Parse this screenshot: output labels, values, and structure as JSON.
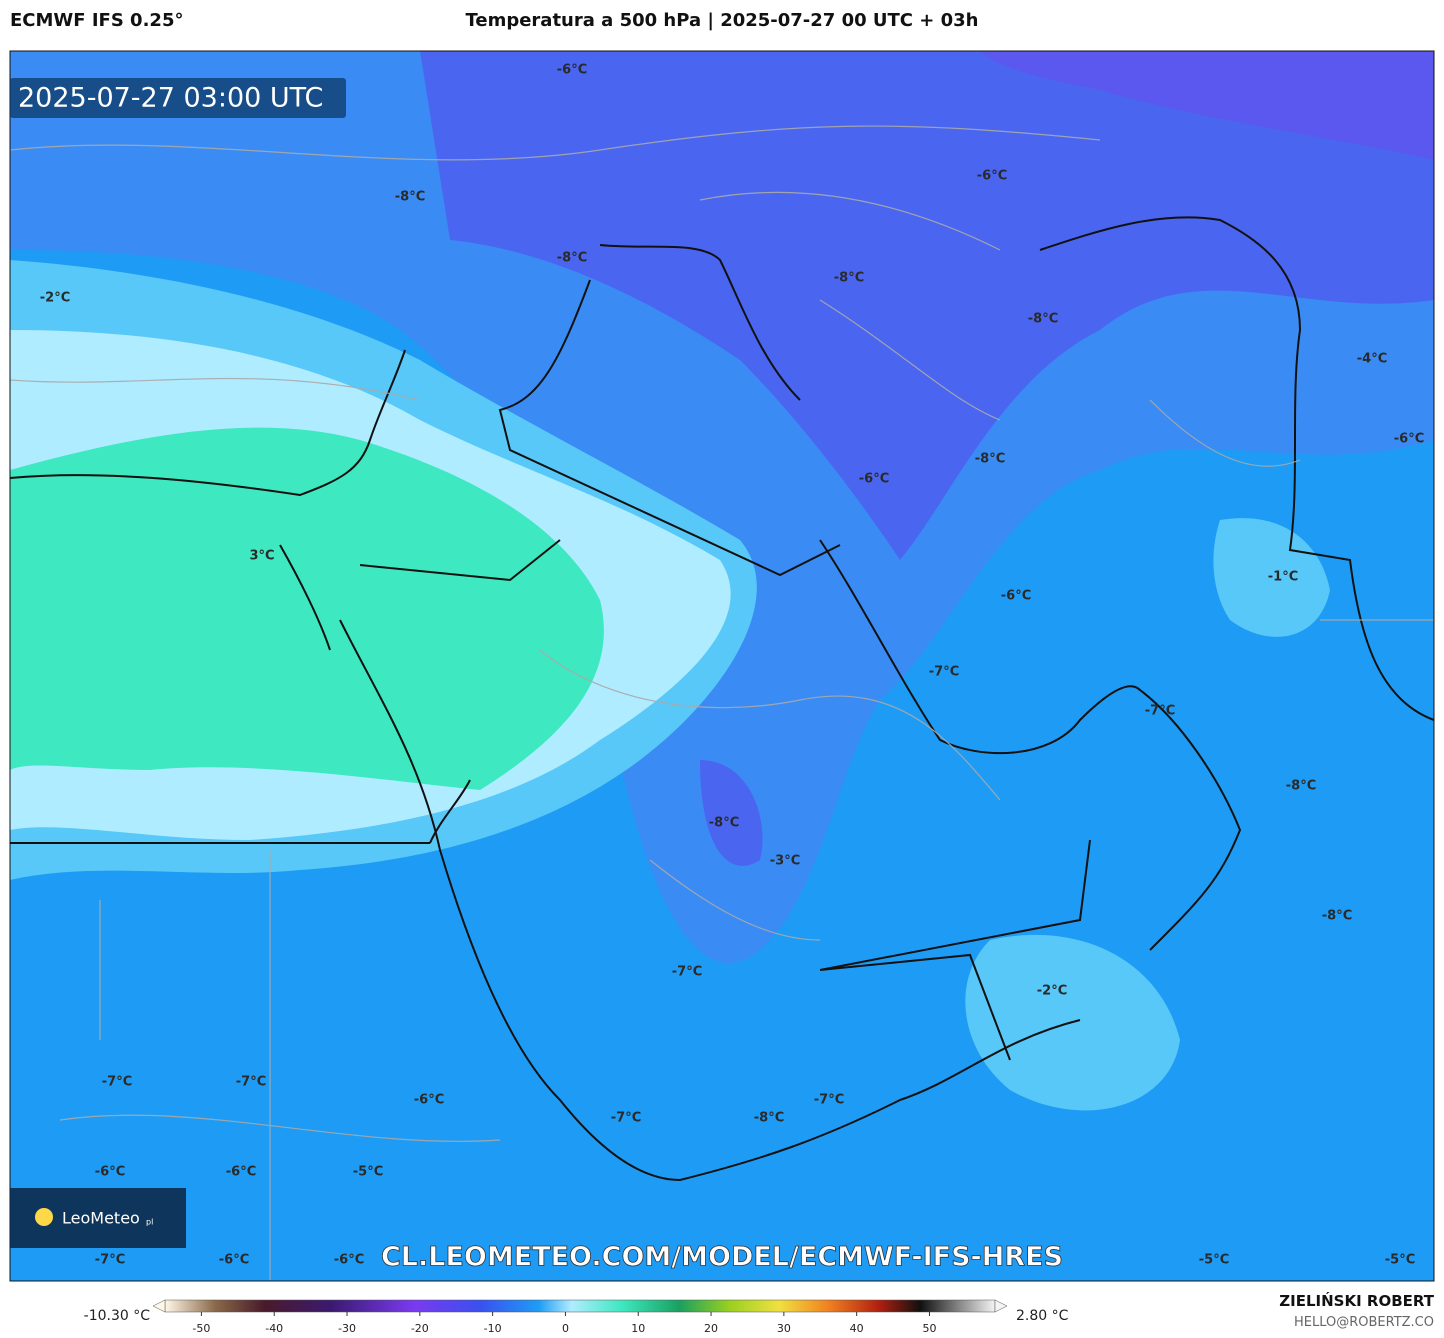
{
  "header": {
    "model": "ECMWF IFS 0.25°",
    "title": "Temperatura a 500 hPa | 2025-07-27 00 UTC + 03h"
  },
  "map": {
    "timestamp": "2025-07-27 03:00 UTC",
    "logo": "LeoMeteo",
    "logo_suffix": "pl",
    "url": "CL.LEOMETEO.COM/MODEL/ECMWF-IFS-HRES",
    "labels": [
      "-6°C",
      "-8°C",
      "-8°C",
      "-2°C",
      "-6°C",
      "-8°C",
      "-8°C",
      "-4°C",
      "-6°C",
      "-8°C",
      "-6°C",
      "3°C",
      "-1°C",
      "-6°C",
      "-7°C",
      "-7°C",
      "-8°C",
      "-8°C",
      "-3°C",
      "-8°C",
      "-7°C",
      "-2°C",
      "-7°C",
      "-7°C",
      "-6°C",
      "-7°C",
      "-8°C",
      "-7°C",
      "-6°C",
      "-6°C",
      "-5°C",
      "-7°C",
      "-6°C",
      "-6°C",
      "-5°C",
      "-5°C"
    ]
  },
  "colorbar": {
    "range": [
      -55,
      59
    ],
    "ticks": [
      -50,
      -40,
      -30,
      -20,
      -10,
      0,
      10,
      20,
      30,
      40,
      50
    ],
    "min_label": "-10.30 °C",
    "max_label": "2.80 °C"
  },
  "footer": {
    "author": "ZIELIŃSKI ROBERT",
    "email": "HELLO@ROBERTZ.CO"
  }
}
